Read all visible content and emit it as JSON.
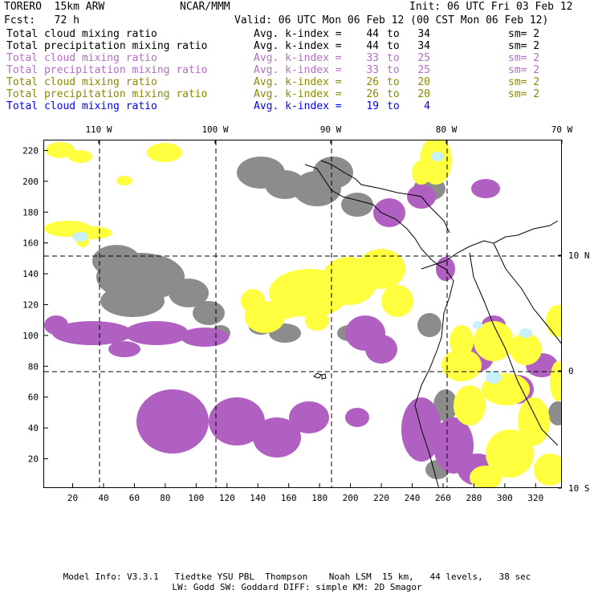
{
  "header": {
    "model": "TORERO  15km ARW",
    "institution": "NCAR/MMM",
    "init": "Init: 06 UTC Fri 03 Feb 12",
    "fcst": "Fcst:   72 h",
    "valid": "Valid: 06 UTC Mon 06 Feb 12 (00 CST Mon 06 Feb 12)"
  },
  "legend": [
    {
      "field": "Total cloud mixing ratio",
      "avg": "Avg. k-index =",
      "v1": "44",
      "to": "to",
      "v2": "34",
      "sm": "sm= 2",
      "color": "#000000"
    },
    {
      "field": "Total precipitation mixing ratio",
      "avg": "Avg. k-index =",
      "v1": "44",
      "to": "to",
      "v2": "34",
      "sm": "sm= 2",
      "color": "#000000"
    },
    {
      "field": "Total cloud mixing ratio",
      "avg": "Avg. k-index =",
      "v1": "33",
      "to": "to",
      "v2": "25",
      "sm": "sm= 2",
      "color": "#b46fc4"
    },
    {
      "field": "Total precipitation mixing ratio",
      "avg": "Avg. k-index =",
      "v1": "33",
      "to": "to",
      "v2": "25",
      "sm": "sm= 2",
      "color": "#b46fc4"
    },
    {
      "field": "Total cloud mixing ratio",
      "avg": "Avg. k-index =",
      "v1": "26",
      "to": "to",
      "v2": "20",
      "sm": "sm= 2",
      "color": "#8a8a00"
    },
    {
      "field": "Total precipitation mixing ratio",
      "avg": "Avg. k-index =",
      "v1": "26",
      "to": "to",
      "v2": "20",
      "sm": "sm= 2",
      "color": "#8a8a00"
    },
    {
      "field": "Total cloud mixing ratio",
      "avg": "Avg. k-index =",
      "v1": "19",
      "to": "to",
      "v2": "4",
      "sm": "",
      "color": "#0000ff"
    }
  ],
  "map": {
    "grid_x_ticks": [
      "20",
      "40",
      "60",
      "80",
      "100",
      "120",
      "140",
      "160",
      "180",
      "200",
      "220",
      "240",
      "260",
      "280",
      "300",
      "320"
    ],
    "grid_y_ticks": [
      "20",
      "40",
      "60",
      "80",
      "100",
      "120",
      "140",
      "160",
      "180",
      "200",
      "220"
    ],
    "lon_labels": [
      "110 W",
      "100 W",
      "90 W",
      "80 W",
      "70 W"
    ],
    "lat_labels": [
      "10 N",
      "0",
      "10 S"
    ],
    "colors": {
      "gray": "#8c8c8c",
      "purple": "#b060c0",
      "yellow": "#ffff40",
      "cyan": "#c8f0f8"
    }
  },
  "footer": {
    "line1": "Model Info: V3.3.1   Tiedtke YSU PBL  Thompson    Noah LSM  15 km,   44 levels,   38 sec",
    "line2": "LW: Godd SW: Goddard DIFF: simple KM: 2D Smagor"
  }
}
